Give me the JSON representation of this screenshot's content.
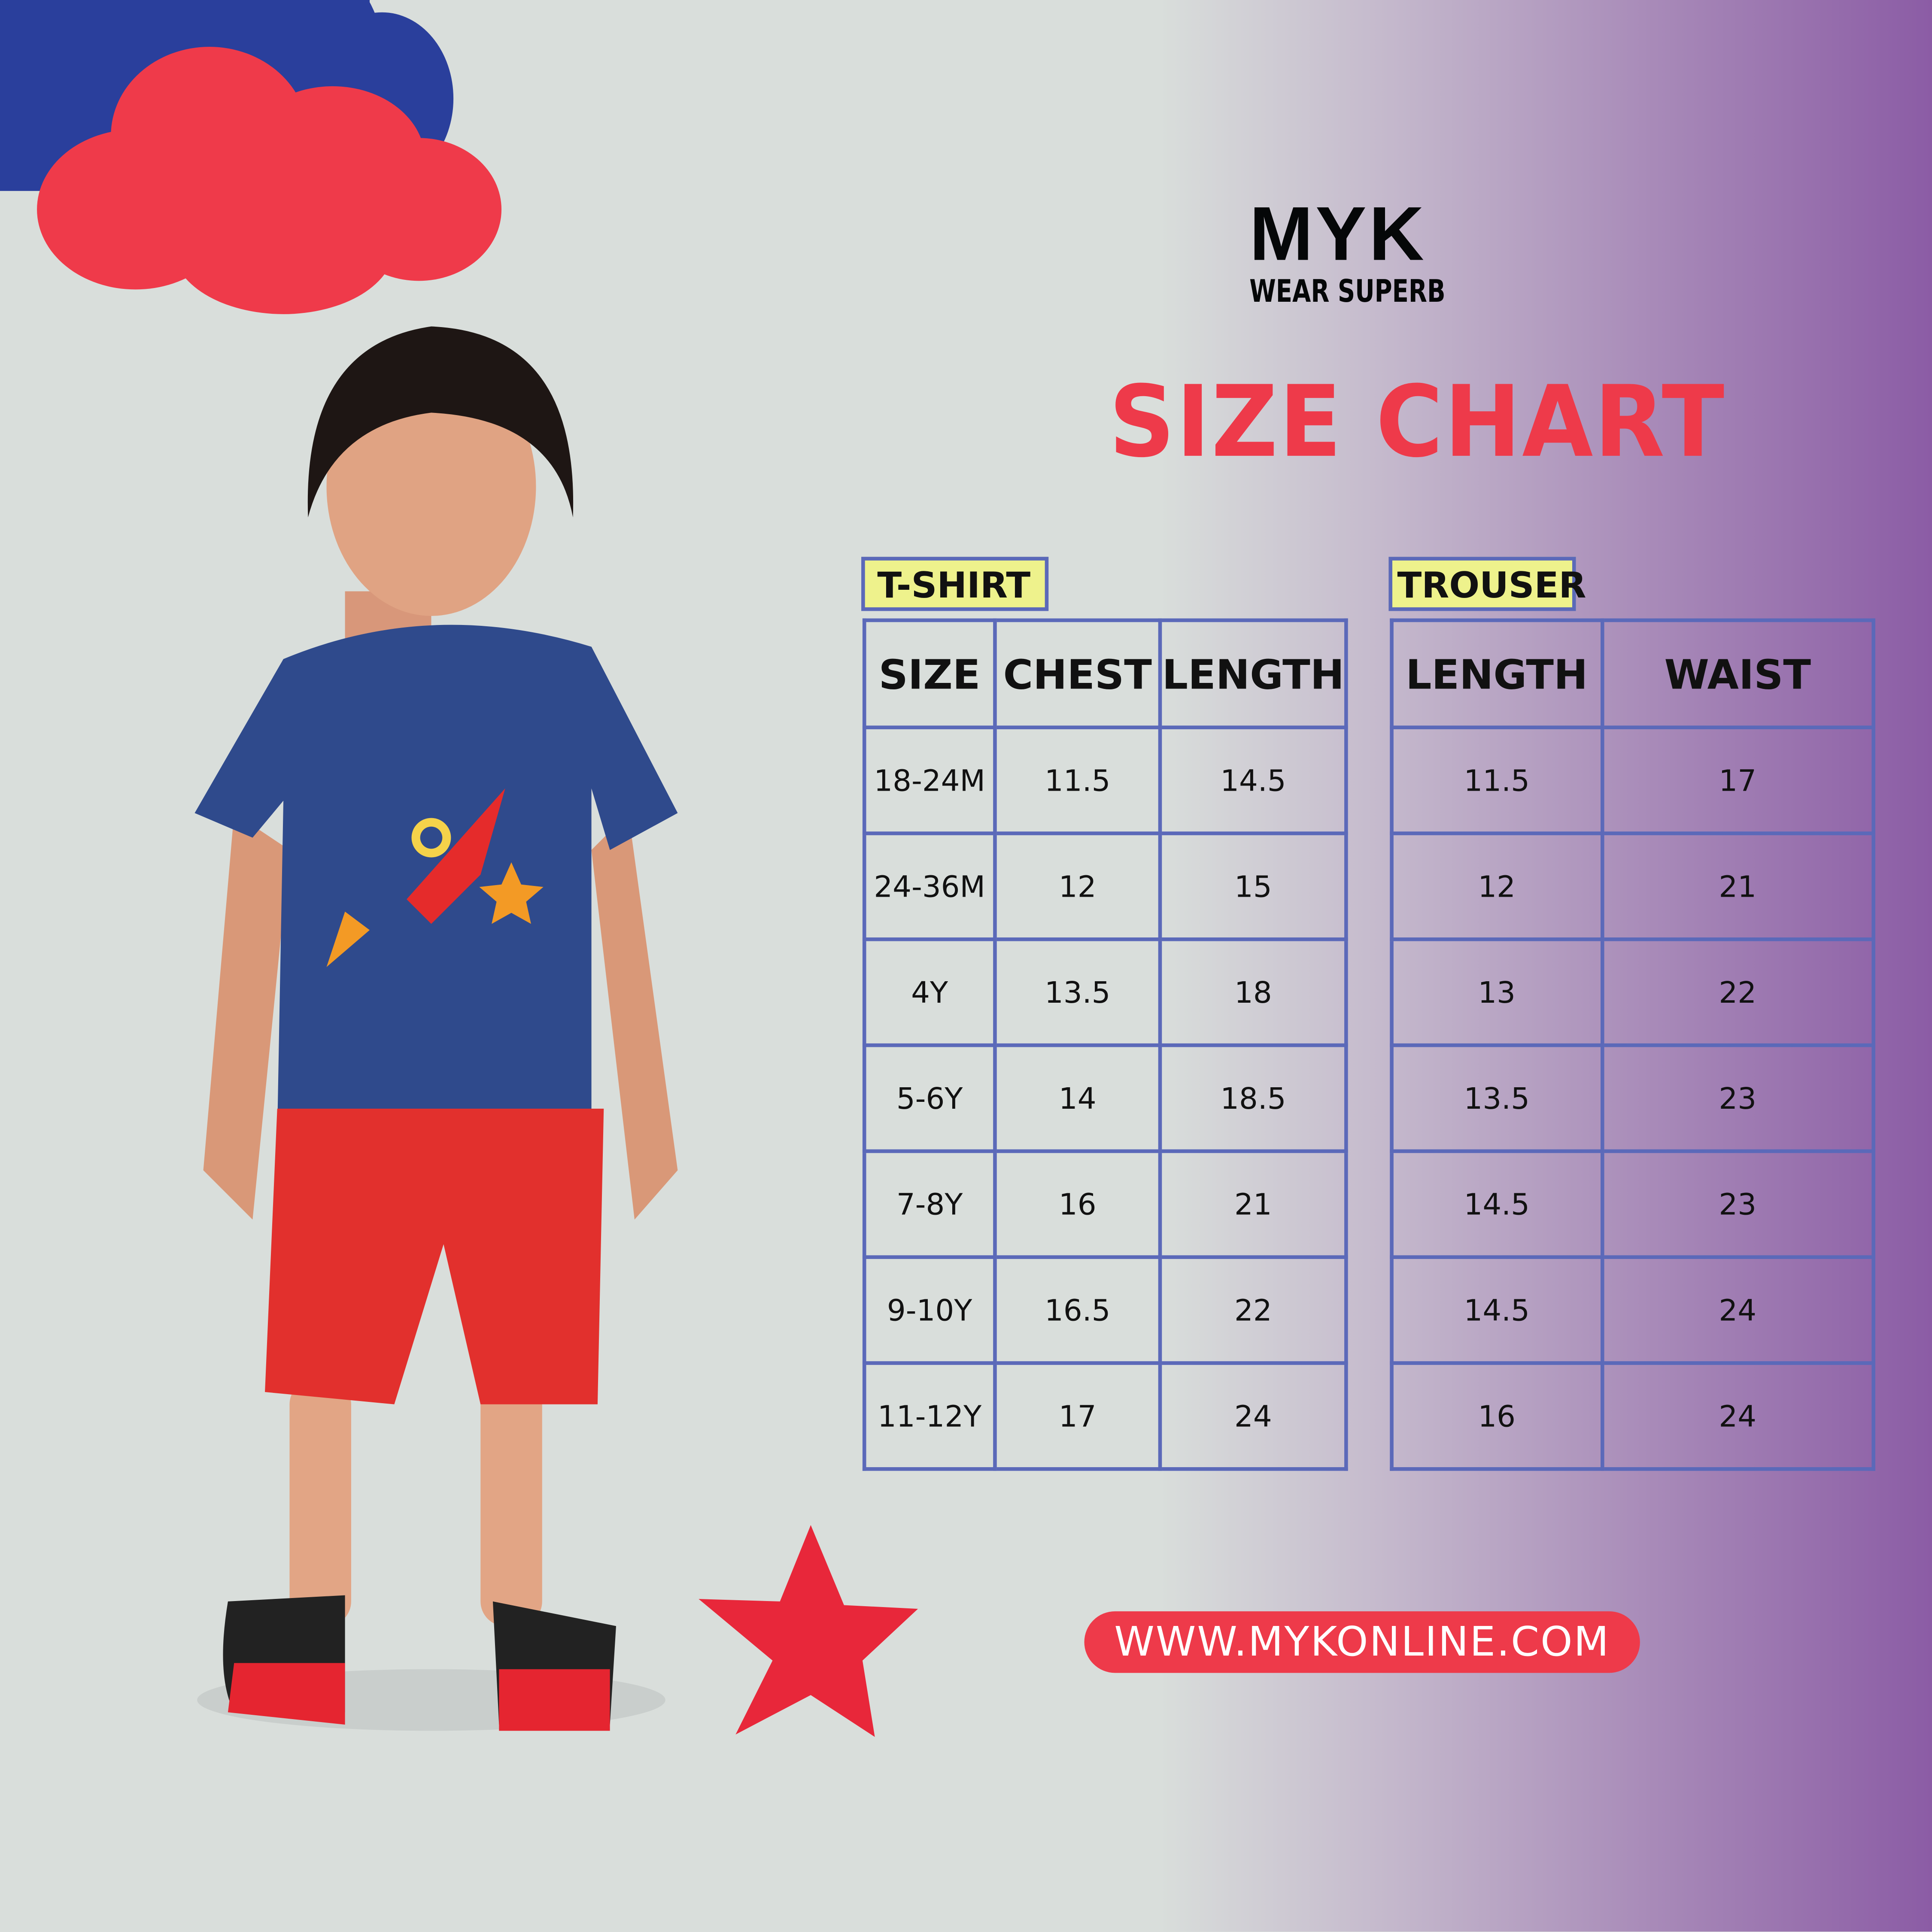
{
  "brand": {
    "logo_text": "MYK",
    "tagline": "WEAR SUPERB"
  },
  "title": "SIZE CHART",
  "tshirt": {
    "label": "T-SHIRT",
    "headers": [
      "SIZE",
      "CHEST",
      "LENGTH"
    ],
    "rows": [
      [
        "18-24M",
        "11.5",
        "14.5"
      ],
      [
        "24-36M",
        "12",
        "15"
      ],
      [
        "4Y",
        "13.5",
        "18"
      ],
      [
        "5-6Y",
        "14",
        "18.5"
      ],
      [
        "7-8Y",
        "16",
        "21"
      ],
      [
        "9-10Y",
        "16.5",
        "22"
      ],
      [
        "11-12Y",
        "17",
        "24"
      ]
    ]
  },
  "trouser": {
    "label": "TROUSER",
    "headers": [
      "LENGTH",
      "WAIST"
    ],
    "rows": [
      [
        "11.5",
        "17"
      ],
      [
        "12",
        "21"
      ],
      [
        "13",
        "22"
      ],
      [
        "13.5",
        "23"
      ],
      [
        "14.5",
        "23"
      ],
      [
        "14.5",
        "24"
      ],
      [
        "16",
        "24"
      ]
    ]
  },
  "website": "WWW.MYKONLINE.COM",
  "colors": {
    "accent_red": "#ee3a4a",
    "star_red": "#e8273a",
    "cloud_blue": "#2a3f9c",
    "table_border": "#5b69b9",
    "label_yellow": "#eef28c",
    "gradient_purple": "#8b5ca5"
  }
}
